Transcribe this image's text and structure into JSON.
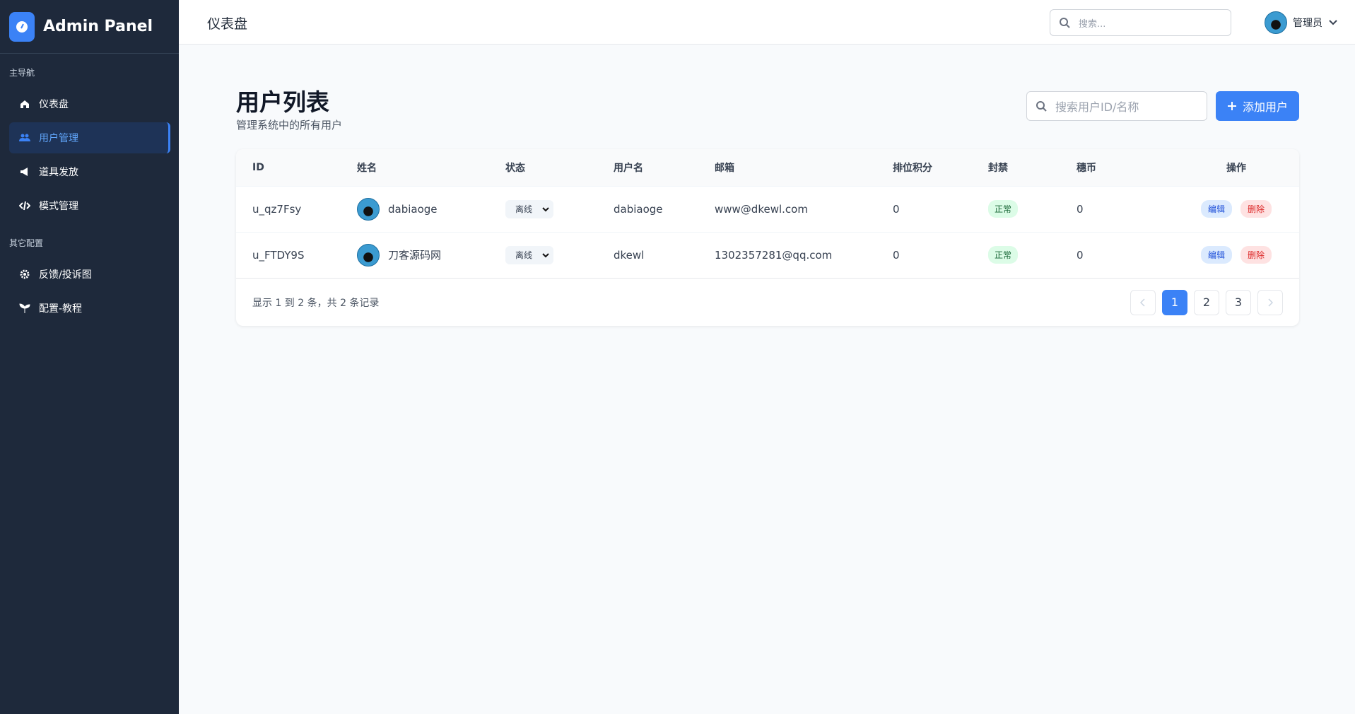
{
  "sidebar": {
    "brand": "Admin Panel",
    "sections": [
      {
        "title": "主导航",
        "items": [
          "仪表盘",
          "用户管理",
          "道具发放",
          "模式管理"
        ]
      },
      {
        "title": "其它配置",
        "items": [
          "反馈/投诉图",
          "配置-教程"
        ]
      }
    ]
  },
  "header": {
    "title": "仪表盘",
    "search_placeholder": "搜索...",
    "user": "管理员"
  },
  "page": {
    "title": "用户列表",
    "subtitle": "管理系统中的所有用户",
    "search_placeholder": "搜索用户ID/名称",
    "add_button": "添加用户"
  },
  "table": {
    "columns": [
      "ID",
      "姓名",
      "状态",
      "用户名",
      "邮箱",
      "排位积分",
      "封禁",
      "穗币",
      "操作"
    ],
    "rows": [
      [
        "u_qz7Fsy",
        "dabiaoge",
        "离线",
        "dabiaoge",
        "www@dkewl.com",
        0,
        "正常",
        0
      ],
      [
        "u_FTDY9S",
        "刀客源码网",
        "离线",
        "dkewl",
        "1302357281@qq.com",
        0,
        "正常",
        0
      ]
    ],
    "actions": [
      "编辑",
      "删除"
    ]
  },
  "pagination": {
    "summary": "显示 1 到 2 条，共 2 条记录",
    "pages": [
      "1",
      "2",
      "3"
    ]
  }
}
